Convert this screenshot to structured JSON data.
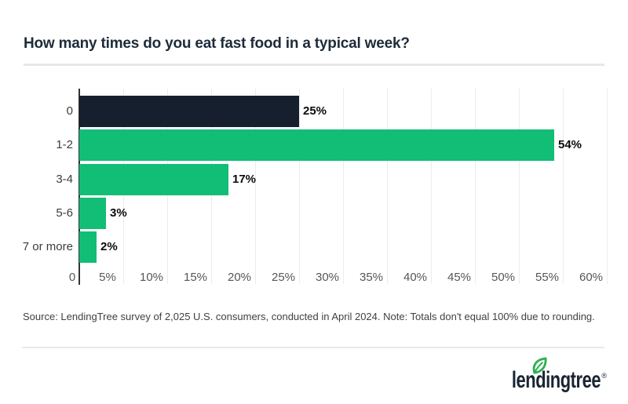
{
  "title": "How many times do you eat fast food in a typical week?",
  "chart_data": {
    "type": "bar",
    "orientation": "horizontal",
    "title": "How many times do you eat fast food in a typical week?",
    "categories": [
      "0",
      "1-2",
      "3-4",
      "5-6",
      "7 or more"
    ],
    "values": [
      25,
      54,
      17,
      3,
      2
    ],
    "data_labels": [
      "25%",
      "54%",
      "17%",
      "3%",
      "2%"
    ],
    "xlabel": "",
    "ylabel": "",
    "xlim": [
      0,
      60
    ],
    "x_tick_step": 5,
    "x_tick_labels": [
      "0",
      "5%",
      "10%",
      "15%",
      "20%",
      "25%",
      "30%",
      "35%",
      "40%",
      "45%",
      "50%",
      "55%",
      "60%"
    ],
    "grid": true,
    "legend": false,
    "bar_colors": [
      "#161f2d",
      "#12bd75",
      "#12bd75",
      "#12bd75",
      "#12bd75"
    ]
  },
  "source_note": "Source: LendingTree survey of 2,025 U.S. consumers, conducted in April 2024. Note: Totals don't equal 100% due to rounding.",
  "logo": {
    "text": "lendingtree",
    "registered": "®",
    "leaf_color": "#2db153",
    "text_color": "#1a2433"
  },
  "colors": {
    "background": "#ffffff",
    "dark_navy_bar": "#161f2d",
    "green_bar": "#12bd75",
    "title_text": "#1d2b3a",
    "title_divider": "#e7e7e7",
    "axis_line": "#333333",
    "gridline": "#ececec",
    "tick_label": "#565656",
    "category_label": "#3c3c3c",
    "value_label": "#0b0b0b",
    "source_text": "#414141"
  }
}
